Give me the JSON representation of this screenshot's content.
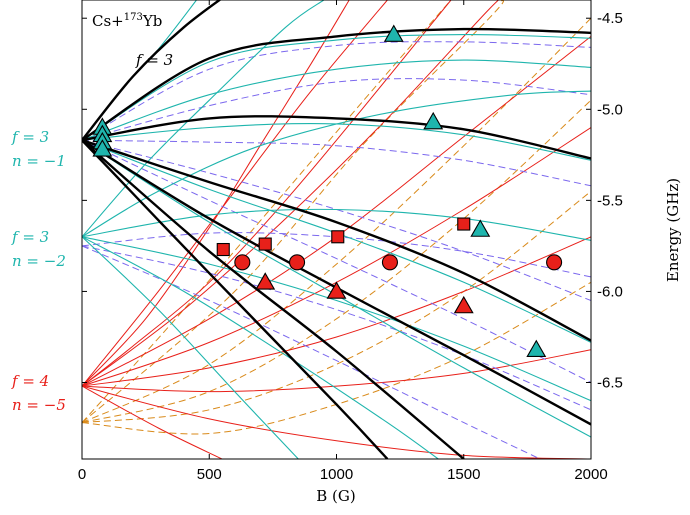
{
  "chart_data": {
    "type": "line",
    "annotations": {
      "system": "Cs+",
      "system_mass": "173",
      "system_element": "Yb",
      "top_label": "f = 3",
      "f3_n1": [
        "f = 3",
        "n = −1"
      ],
      "f3_n2": [
        "f = 3",
        "n = −2"
      ],
      "f4_n5": [
        "f = 4",
        "n = −5"
      ]
    },
    "xlabel": "B (G)",
    "ylabel": "Energy (GHz)",
    "xlim": [
      0,
      2000
    ],
    "ylim": [
      -6.92,
      -4.4
    ],
    "xticks": [
      "0",
      "500",
      "1000",
      "1500",
      "2000"
    ],
    "yticks": [
      "-4.5",
      "-5.0",
      "-5.5",
      "-6.0",
      "-6.5"
    ],
    "xtick_values": [
      0,
      500,
      1000,
      1500,
      2000
    ],
    "ytick_values": [
      -4.5,
      -5.0,
      -5.5,
      -6.0,
      -6.5
    ],
    "colors": {
      "black": "#000000",
      "cyan": "#1fb5ad",
      "blue_dash": "#7b68ee",
      "red": "#e8201a",
      "orange_dash": "#d98a1a",
      "label_cyan": "#1fb5ad",
      "label_red": "#e8201a"
    },
    "series": [
      {
        "group": "black",
        "points": [
          [
            0,
            -5.17
          ],
          [
            200,
            -4.82
          ],
          [
            400,
            -4.55
          ],
          [
            600,
            -4.34
          ]
        ]
      },
      {
        "group": "black",
        "points": [
          [
            0,
            -5.17
          ],
          [
            500,
            -4.72
          ],
          [
            1000,
            -4.6
          ],
          [
            1500,
            -4.56
          ],
          [
            2000,
            -4.58
          ]
        ]
      },
      {
        "group": "black",
        "points": [
          [
            0,
            -5.17
          ],
          [
            500,
            -5.05
          ],
          [
            1000,
            -5.05
          ],
          [
            1500,
            -5.11
          ],
          [
            2000,
            -5.27
          ]
        ]
      },
      {
        "group": "black",
        "points": [
          [
            0,
            -5.17
          ],
          [
            500,
            -5.4
          ],
          [
            1000,
            -5.62
          ],
          [
            1500,
            -5.9
          ],
          [
            2000,
            -6.27
          ]
        ]
      },
      {
        "group": "black",
        "points": [
          [
            0,
            -5.17
          ],
          [
            500,
            -5.6
          ],
          [
            1000,
            -5.98
          ],
          [
            1500,
            -6.35
          ],
          [
            2000,
            -6.73
          ]
        ]
      },
      {
        "group": "black",
        "points": [
          [
            0,
            -5.17
          ],
          [
            500,
            -5.78
          ],
          [
            1000,
            -6.33
          ],
          [
            1500,
            -6.92
          ]
        ]
      },
      {
        "group": "black",
        "points": [
          [
            0,
            -5.17
          ],
          [
            500,
            -5.9
          ],
          [
            1000,
            -6.62
          ],
          [
            1200,
            -6.92
          ]
        ]
      },
      {
        "group": "cyan",
        "points": [
          [
            0,
            -5.17
          ],
          [
            150,
            -4.9
          ],
          [
            300,
            -4.67
          ],
          [
            450,
            -4.4
          ]
        ]
      },
      {
        "group": "cyan",
        "points": [
          [
            0,
            -5.17
          ],
          [
            500,
            -4.74
          ],
          [
            1000,
            -4.62
          ],
          [
            1500,
            -4.59
          ],
          [
            2000,
            -4.61
          ]
        ]
      },
      {
        "group": "cyan",
        "points": [
          [
            0,
            -5.17
          ],
          [
            500,
            -4.92
          ],
          [
            1000,
            -4.78
          ],
          [
            1500,
            -4.73
          ],
          [
            2000,
            -4.77
          ]
        ]
      },
      {
        "group": "cyan",
        "points": [
          [
            0,
            -5.17
          ],
          [
            500,
            -5.1
          ],
          [
            1000,
            -5.08
          ],
          [
            1500,
            -5.14
          ],
          [
            2000,
            -5.28
          ]
        ]
      },
      {
        "group": "cyan",
        "points": [
          [
            0,
            -5.17
          ],
          [
            500,
            -5.44
          ],
          [
            1000,
            -5.68
          ],
          [
            1500,
            -5.95
          ],
          [
            2000,
            -6.28
          ]
        ]
      },
      {
        "group": "cyan",
        "points": [
          [
            0,
            -5.17
          ],
          [
            500,
            -5.62
          ],
          [
            1000,
            -6.02
          ],
          [
            1500,
            -6.42
          ],
          [
            2000,
            -6.8
          ]
        ]
      },
      {
        "group": "cyan",
        "points": [
          [
            0,
            -5.7
          ],
          [
            300,
            -5.45
          ],
          [
            700,
            -5.2
          ],
          [
            1200,
            -5.02
          ],
          [
            1700,
            -4.92
          ],
          [
            2000,
            -4.9
          ]
        ]
      },
      {
        "group": "cyan",
        "points": [
          [
            0,
            -5.7
          ],
          [
            500,
            -5.58
          ],
          [
            1000,
            -5.55
          ],
          [
            1500,
            -5.6
          ],
          [
            2000,
            -5.72
          ]
        ]
      },
      {
        "group": "cyan",
        "points": [
          [
            0,
            -5.7
          ],
          [
            500,
            -5.85
          ],
          [
            1000,
            -6.05
          ],
          [
            1500,
            -6.3
          ],
          [
            2000,
            -6.6
          ]
        ]
      },
      {
        "group": "cyan",
        "points": [
          [
            0,
            -5.7
          ],
          [
            400,
            -6.0
          ],
          [
            800,
            -6.35
          ],
          [
            1200,
            -6.72
          ],
          [
            1400,
            -6.92
          ]
        ]
      },
      {
        "group": "cyan",
        "points": [
          [
            0,
            -5.7
          ],
          [
            300,
            -6.1
          ],
          [
            600,
            -6.55
          ],
          [
            850,
            -6.92
          ]
        ]
      },
      {
        "group": "cyan",
        "points": [
          [
            0,
            -5.7
          ],
          [
            250,
            -5.3
          ],
          [
            500,
            -4.95
          ],
          [
            800,
            -4.55
          ],
          [
            950,
            -4.4
          ]
        ]
      },
      {
        "group": "blue",
        "points": [
          [
            0,
            -5.17
          ],
          [
            500,
            -4.78
          ],
          [
            1000,
            -4.65
          ],
          [
            1500,
            -4.63
          ],
          [
            2000,
            -4.66
          ]
        ]
      },
      {
        "group": "blue",
        "points": [
          [
            0,
            -5.17
          ],
          [
            500,
            -4.98
          ],
          [
            1000,
            -4.85
          ],
          [
            1500,
            -4.84
          ],
          [
            2000,
            -4.92
          ]
        ]
      },
      {
        "group": "blue",
        "points": [
          [
            0,
            -5.17
          ],
          [
            500,
            -5.18
          ],
          [
            1000,
            -5.2
          ],
          [
            1500,
            -5.28
          ],
          [
            2000,
            -5.42
          ]
        ]
      },
      {
        "group": "blue",
        "points": [
          [
            0,
            -5.17
          ],
          [
            500,
            -5.35
          ],
          [
            1000,
            -5.55
          ],
          [
            1500,
            -5.78
          ],
          [
            2000,
            -6.05
          ]
        ]
      },
      {
        "group": "blue",
        "points": [
          [
            0,
            -5.17
          ],
          [
            500,
            -5.5
          ],
          [
            1000,
            -5.82
          ],
          [
            1500,
            -6.15
          ],
          [
            2000,
            -6.5
          ]
        ]
      },
      {
        "group": "blue",
        "points": [
          [
            0,
            -5.75
          ],
          [
            500,
            -5.68
          ],
          [
            1000,
            -5.7
          ],
          [
            1500,
            -5.78
          ],
          [
            2000,
            -5.92
          ]
        ]
      },
      {
        "group": "blue",
        "points": [
          [
            0,
            -5.75
          ],
          [
            500,
            -5.9
          ],
          [
            1000,
            -6.1
          ],
          [
            1500,
            -6.35
          ],
          [
            2000,
            -6.65
          ]
        ]
      },
      {
        "group": "blue",
        "points": [
          [
            0,
            -5.75
          ],
          [
            500,
            -6.05
          ],
          [
            1000,
            -6.38
          ],
          [
            1500,
            -6.72
          ],
          [
            1800,
            -6.92
          ]
        ]
      },
      {
        "group": "red",
        "points": [
          [
            0,
            -6.52
          ],
          [
            300,
            -6.0
          ],
          [
            600,
            -5.45
          ],
          [
            900,
            -4.9
          ],
          [
            1200,
            -4.4
          ]
        ]
      },
      {
        "group": "red",
        "points": [
          [
            0,
            -6.52
          ],
          [
            400,
            -6.1
          ],
          [
            800,
            -5.6
          ],
          [
            1200,
            -5.05
          ],
          [
            1600,
            -4.45
          ],
          [
            1650,
            -4.4
          ]
        ]
      },
      {
        "group": "red",
        "points": [
          [
            0,
            -6.52
          ],
          [
            500,
            -6.15
          ],
          [
            1000,
            -5.7
          ],
          [
            1500,
            -5.15
          ],
          [
            2000,
            -4.6
          ]
        ]
      },
      {
        "group": "red",
        "points": [
          [
            0,
            -6.52
          ],
          [
            500,
            -6.28
          ],
          [
            1000,
            -5.95
          ],
          [
            1500,
            -5.55
          ],
          [
            2000,
            -5.1
          ]
        ]
      },
      {
        "group": "red",
        "points": [
          [
            0,
            -6.52
          ],
          [
            500,
            -6.42
          ],
          [
            1000,
            -6.25
          ],
          [
            1500,
            -6.0
          ],
          [
            2000,
            -5.7
          ]
        ]
      },
      {
        "group": "red",
        "points": [
          [
            0,
            -6.52
          ],
          [
            500,
            -6.55
          ],
          [
            1000,
            -6.52
          ],
          [
            1500,
            -6.45
          ],
          [
            2000,
            -6.32
          ]
        ]
      },
      {
        "group": "red",
        "points": [
          [
            0,
            -6.52
          ],
          [
            500,
            -6.7
          ],
          [
            1000,
            -6.82
          ],
          [
            1500,
            -6.9
          ],
          [
            2000,
            -6.92
          ]
        ]
      },
      {
        "group": "red",
        "points": [
          [
            0,
            -6.52
          ],
          [
            300,
            -6.75
          ],
          [
            550,
            -6.92
          ]
        ]
      },
      {
        "group": "red",
        "points": [
          [
            0,
            -6.52
          ],
          [
            200,
            -6.3
          ],
          [
            500,
            -5.95
          ],
          [
            800,
            -5.5
          ],
          [
            1100,
            -5.0
          ],
          [
            1450,
            -4.4
          ]
        ]
      },
      {
        "group": "red",
        "points": [
          [
            0,
            -6.52
          ],
          [
            250,
            -6.15
          ],
          [
            500,
            -5.65
          ],
          [
            700,
            -5.2
          ],
          [
            900,
            -4.75
          ],
          [
            1050,
            -4.4
          ]
        ]
      },
      {
        "group": "orange",
        "points": [
          [
            0,
            -6.72
          ],
          [
            500,
            -6.4
          ],
          [
            1000,
            -5.85
          ],
          [
            1500,
            -5.2
          ],
          [
            2000,
            -4.5
          ]
        ]
      },
      {
        "group": "orange",
        "points": [
          [
            0,
            -6.72
          ],
          [
            500,
            -6.55
          ],
          [
            1000,
            -6.15
          ],
          [
            1500,
            -5.6
          ],
          [
            2000,
            -4.95
          ]
        ]
      },
      {
        "group": "orange",
        "points": [
          [
            0,
            -6.72
          ],
          [
            500,
            -6.65
          ],
          [
            1000,
            -6.4
          ],
          [
            1500,
            -6.0
          ],
          [
            2000,
            -5.45
          ]
        ]
      },
      {
        "group": "orange",
        "points": [
          [
            0,
            -6.72
          ],
          [
            500,
            -6.78
          ],
          [
            1000,
            -6.62
          ],
          [
            1500,
            -6.35
          ],
          [
            2000,
            -5.95
          ]
        ]
      },
      {
        "group": "orange",
        "points": [
          [
            0,
            -6.72
          ],
          [
            400,
            -6.1
          ],
          [
            800,
            -5.45
          ],
          [
            1200,
            -4.8
          ],
          [
            1450,
            -4.4
          ]
        ]
      },
      {
        "group": "orange",
        "points": [
          [
            0,
            -6.72
          ],
          [
            600,
            -6.0
          ],
          [
            1100,
            -5.2
          ],
          [
            1600,
            -4.5
          ],
          [
            1650,
            -4.4
          ]
        ]
      }
    ],
    "markers": [
      {
        "shape": "triangle",
        "color": "cyan",
        "x": 80,
        "y": -5.1
      },
      {
        "shape": "triangle",
        "color": "cyan",
        "x": 80,
        "y": -5.14
      },
      {
        "shape": "triangle",
        "color": "cyan",
        "x": 80,
        "y": -5.18
      },
      {
        "shape": "triangle",
        "color": "cyan",
        "x": 80,
        "y": -5.22
      },
      {
        "shape": "triangle",
        "color": "cyan",
        "x": 1225,
        "y": -4.59
      },
      {
        "shape": "triangle",
        "color": "cyan",
        "x": 1380,
        "y": -5.07
      },
      {
        "shape": "triangle",
        "color": "cyan",
        "x": 1565,
        "y": -5.66
      },
      {
        "shape": "triangle",
        "color": "cyan",
        "x": 1785,
        "y": -6.32
      },
      {
        "shape": "square",
        "color": "red",
        "x": 555,
        "y": -5.77
      },
      {
        "shape": "square",
        "color": "red",
        "x": 720,
        "y": -5.74
      },
      {
        "shape": "square",
        "color": "red",
        "x": 1005,
        "y": -5.7
      },
      {
        "shape": "square",
        "color": "red",
        "x": 1500,
        "y": -5.63
      },
      {
        "shape": "circle",
        "color": "red",
        "x": 630,
        "y": -5.84
      },
      {
        "shape": "circle",
        "color": "red",
        "x": 845,
        "y": -5.84
      },
      {
        "shape": "circle",
        "color": "red",
        "x": 1210,
        "y": -5.84
      },
      {
        "shape": "circle",
        "color": "red",
        "x": 1855,
        "y": -5.84
      },
      {
        "shape": "triangle",
        "color": "red",
        "x": 720,
        "y": -5.95
      },
      {
        "shape": "triangle",
        "color": "red",
        "x": 1000,
        "y": -6.0
      },
      {
        "shape": "triangle",
        "color": "red",
        "x": 1500,
        "y": -6.08
      }
    ],
    "grid": false
  }
}
